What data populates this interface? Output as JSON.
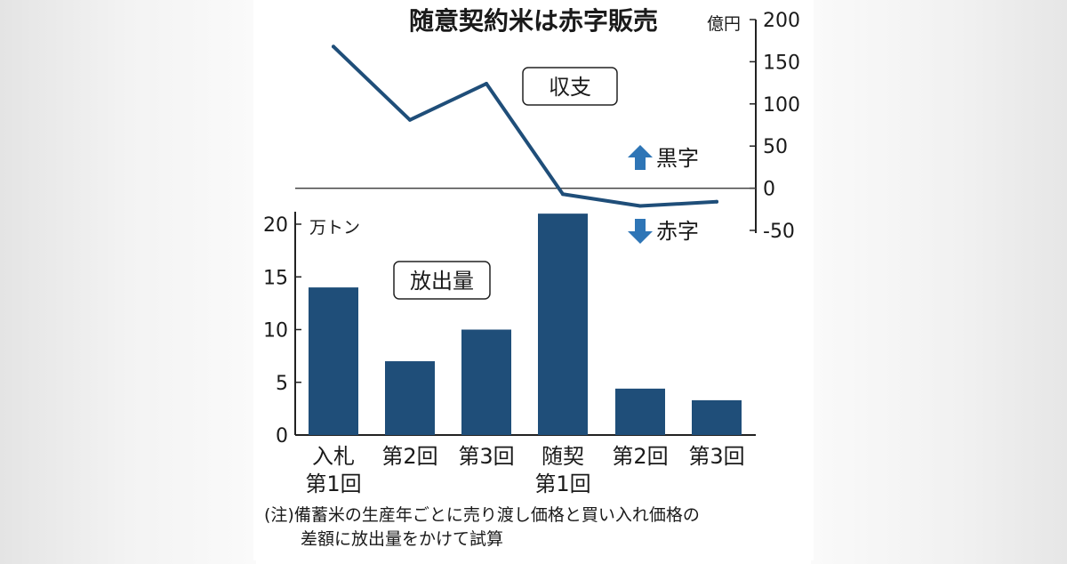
{
  "chart_data": [
    {
      "type": "line",
      "title": "随意契約米は赤字販売",
      "panel_label": "収支",
      "ylabel": "億円",
      "ylim": [
        -50,
        200
      ],
      "yticks": [
        "200",
        "150",
        "100",
        "50",
        "0",
        "-50"
      ],
      "ytick_values": [
        200,
        150,
        100,
        50,
        0,
        -50
      ],
      "categories": [
        "入札第1回",
        "第2回",
        "第3回",
        "随契第1回",
        "第2回",
        "第3回"
      ],
      "values": [
        168,
        81,
        124,
        -7,
        -21,
        -16
      ],
      "line_color": "#1f4e79",
      "legend": {
        "up_label": "黒字",
        "down_label": "赤字",
        "up_icon": "arrow-up-icon",
        "down_icon": "arrow-down-icon",
        "arrow_color": "#2e75b6"
      }
    },
    {
      "type": "bar",
      "panel_label": "放出量",
      "ylabel": "万トン",
      "ylim": [
        0,
        20
      ],
      "yticks": [
        "20",
        "15",
        "10",
        "5",
        "0"
      ],
      "ytick_values": [
        20,
        15,
        10,
        5,
        0
      ],
      "categories": [
        [
          "入札",
          "第1回"
        ],
        [
          "第2回"
        ],
        [
          "第3回"
        ],
        [
          "随契",
          "第1回"
        ],
        [
          "第2回"
        ],
        [
          "第3回"
        ]
      ],
      "values": [
        14,
        7,
        10,
        21,
        4.4,
        3.3
      ],
      "bar_color": "#1f4e79"
    }
  ],
  "note": {
    "line1": "(注)備蓄米の生産年ごとに売り渡し価格と買い入れ価格の",
    "line2": "差額に放出量をかけて試算"
  }
}
